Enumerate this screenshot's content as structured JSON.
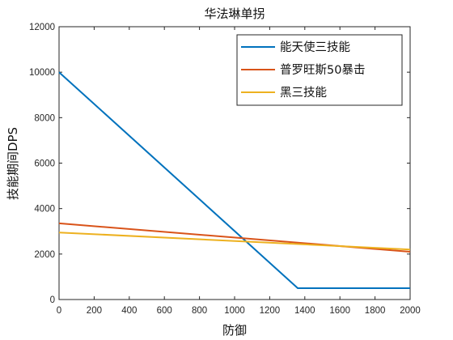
{
  "chart_data": {
    "type": "line",
    "title": "华法琳单拐",
    "xlabel": "防御",
    "ylabel": "技能期间DPS",
    "xlim": [
      0,
      2000
    ],
    "ylim": [
      0,
      12000
    ],
    "xticks": [
      0,
      200,
      400,
      600,
      800,
      1000,
      1200,
      1400,
      1600,
      1800,
      2000
    ],
    "yticks": [
      0,
      2000,
      4000,
      6000,
      8000,
      10000,
      12000
    ],
    "grid": false,
    "legend_position": "top-right",
    "series": [
      {
        "name": "能天使三技能",
        "color": "#0072bd",
        "x": [
          0,
          1360,
          2000
        ],
        "y": [
          10000,
          500,
          500
        ]
      },
      {
        "name": "普罗旺斯50暴击",
        "color": "#d95319",
        "x": [
          0,
          2000
        ],
        "y": [
          3350,
          2100
        ]
      },
      {
        "name": "黑三技能",
        "color": "#edb120",
        "x": [
          0,
          2000
        ],
        "y": [
          2950,
          2200
        ]
      }
    ]
  }
}
